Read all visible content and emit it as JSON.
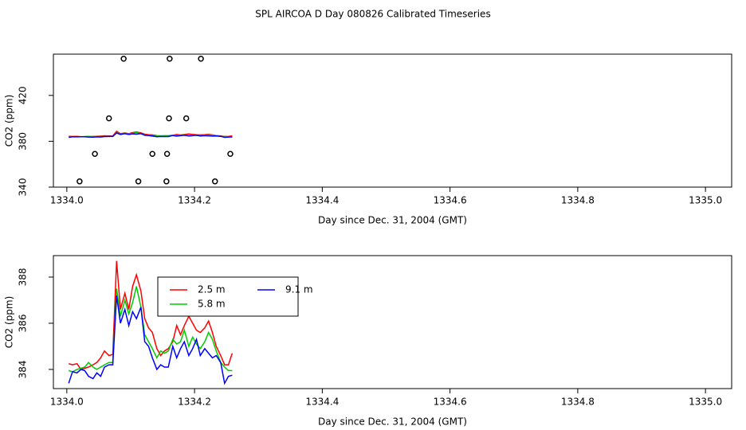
{
  "title": "SPL AIRCOA D  Day 080826  Calibrated Timeseries",
  "chart_data": [
    {
      "type": "scatter",
      "xlabel": "Day since Dec. 31, 2004 (GMT)",
      "ylabel": "CO2 (ppm)",
      "xlim": [
        1333.979,
        1335.041
      ],
      "ylim": [
        340,
        456
      ],
      "xticks": [
        {
          "value": 1334.0,
          "label": "1334.0"
        },
        1334.2,
        1334.4,
        1334.6,
        1334.8,
        {
          "value": 1335.0,
          "label": "1335.0"
        }
      ],
      "yticks": [
        340,
        380,
        420
      ],
      "points": {
        "color": "#000000",
        "x": [
          1334.02,
          1334.044,
          1334.066,
          1334.089,
          1334.112,
          1334.134,
          1334.156,
          1334.157,
          1334.16,
          1334.161,
          1334.187,
          1334.21,
          1334.232,
          1334.256
        ],
        "y": [
          345,
          369,
          400,
          452,
          345,
          369,
          345,
          369,
          400,
          452,
          400,
          452,
          345,
          369
        ]
      },
      "x": [
        1334.003,
        1334.009,
        1334.016,
        1334.022,
        1334.028,
        1334.034,
        1334.041,
        1334.047,
        1334.053,
        1334.059,
        1334.066,
        1334.072,
        1334.078,
        1334.084,
        1334.091,
        1334.097,
        1334.103,
        1334.109,
        1334.116,
        1334.122,
        1334.128,
        1334.134,
        1334.141,
        1334.147,
        1334.153,
        1334.159,
        1334.166,
        1334.172,
        1334.178,
        1334.184,
        1334.191,
        1334.197,
        1334.203,
        1334.209,
        1334.216,
        1334.222,
        1334.228,
        1334.234,
        1334.241,
        1334.247,
        1334.253,
        1334.259
      ],
      "series": [
        {
          "name": "2.5 m",
          "color": "#ff0000",
          "values": [
            384.25,
            384.2,
            384.25,
            384.0,
            384.05,
            384.1,
            384.2,
            384.3,
            384.5,
            384.8,
            384.6,
            384.65,
            388.7,
            386.6,
            387.3,
            386.6,
            387.6,
            388.1,
            387.4,
            386.2,
            385.8,
            385.6,
            384.9,
            384.6,
            384.8,
            384.9,
            385.2,
            385.9,
            385.5,
            385.9,
            386.3,
            386.0,
            385.7,
            385.6,
            385.8,
            386.1,
            385.6,
            385.0,
            384.6,
            384.2,
            384.2,
            384.7
          ]
        },
        {
          "name": "5.8 m",
          "color": "#00cc00",
          "values": [
            383.95,
            383.9,
            384.0,
            384.05,
            384.1,
            384.3,
            384.1,
            384.0,
            384.1,
            384.2,
            384.3,
            384.3,
            387.5,
            386.3,
            387.0,
            386.4,
            386.9,
            387.6,
            386.7,
            385.5,
            385.2,
            384.9,
            384.5,
            384.8,
            384.7,
            384.8,
            385.3,
            385.1,
            385.2,
            385.7,
            385.0,
            385.4,
            385.1,
            384.9,
            385.2,
            385.6,
            385.3,
            384.8,
            384.3,
            384.1,
            383.95,
            383.95
          ]
        },
        {
          "name": "9.1 m",
          "color": "#0000ff",
          "values": [
            383.4,
            383.9,
            383.85,
            384.0,
            383.95,
            383.7,
            383.6,
            383.85,
            383.7,
            384.1,
            384.2,
            384.2,
            387.2,
            386.0,
            386.6,
            385.9,
            386.5,
            386.2,
            386.7,
            385.2,
            385.0,
            384.5,
            384.0,
            384.2,
            384.1,
            384.1,
            385.0,
            384.5,
            384.9,
            385.2,
            384.6,
            384.9,
            385.3,
            384.6,
            384.9,
            384.7,
            384.5,
            384.6,
            384.3,
            383.4,
            383.7,
            383.75
          ]
        }
      ]
    },
    {
      "type": "line",
      "xlabel": "Day since Dec. 31, 2004 (GMT)",
      "ylabel": "CO2 (ppm)",
      "xlim": [
        1333.979,
        1335.041
      ],
      "ylim": [
        383.17,
        388.93
      ],
      "xticks": [
        {
          "value": 1334.0,
          "label": "1334.0"
        },
        1334.2,
        1334.4,
        1334.6,
        1334.8,
        {
          "value": 1335.0,
          "label": "1335.0"
        }
      ],
      "yticks": [
        384,
        386,
        388
      ],
      "legend": "upper-left",
      "x": [
        1334.003,
        1334.009,
        1334.016,
        1334.022,
        1334.028,
        1334.034,
        1334.041,
        1334.047,
        1334.053,
        1334.059,
        1334.066,
        1334.072,
        1334.078,
        1334.084,
        1334.091,
        1334.097,
        1334.103,
        1334.109,
        1334.116,
        1334.122,
        1334.128,
        1334.134,
        1334.141,
        1334.147,
        1334.153,
        1334.159,
        1334.166,
        1334.172,
        1334.178,
        1334.184,
        1334.191,
        1334.197,
        1334.203,
        1334.209,
        1334.216,
        1334.222,
        1334.228,
        1334.234,
        1334.241,
        1334.247,
        1334.253,
        1334.259
      ],
      "series": [
        {
          "name": "2.5 m",
          "color": "#ff0000",
          "values": [
            384.25,
            384.2,
            384.25,
            384.0,
            384.05,
            384.1,
            384.2,
            384.3,
            384.5,
            384.8,
            384.6,
            384.65,
            388.7,
            386.6,
            387.3,
            386.6,
            387.6,
            388.1,
            387.4,
            386.2,
            385.8,
            385.6,
            384.9,
            384.6,
            384.8,
            384.9,
            385.2,
            385.9,
            385.5,
            385.9,
            386.3,
            386.0,
            385.7,
            385.6,
            385.8,
            386.1,
            385.6,
            385.0,
            384.6,
            384.2,
            384.2,
            384.7
          ]
        },
        {
          "name": "5.8 m",
          "color": "#00cc00",
          "values": [
            383.95,
            383.9,
            384.0,
            384.05,
            384.1,
            384.3,
            384.1,
            384.0,
            384.1,
            384.2,
            384.3,
            384.3,
            387.5,
            386.3,
            387.0,
            386.4,
            386.9,
            387.6,
            386.7,
            385.5,
            385.2,
            384.9,
            384.5,
            384.8,
            384.7,
            384.8,
            385.3,
            385.1,
            385.2,
            385.7,
            385.0,
            385.4,
            385.1,
            384.9,
            385.2,
            385.6,
            385.3,
            384.8,
            384.3,
            384.1,
            383.95,
            383.95
          ]
        },
        {
          "name": "9.1 m",
          "color": "#0000ff",
          "values": [
            383.4,
            383.9,
            383.85,
            384.0,
            383.95,
            383.7,
            383.6,
            383.85,
            383.7,
            384.1,
            384.2,
            384.2,
            387.2,
            386.0,
            386.6,
            385.9,
            386.5,
            386.2,
            386.7,
            385.2,
            385.0,
            384.5,
            384.0,
            384.2,
            384.1,
            384.1,
            385.0,
            384.5,
            384.9,
            385.2,
            384.6,
            384.9,
            385.3,
            384.6,
            384.9,
            384.7,
            384.5,
            384.6,
            384.3,
            383.4,
            383.7,
            383.75
          ]
        }
      ]
    }
  ]
}
